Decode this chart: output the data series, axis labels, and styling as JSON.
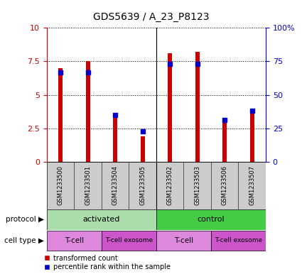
{
  "title": "GDS5639 / A_23_P8123",
  "samples": [
    "GSM1233500",
    "GSM1233501",
    "GSM1233504",
    "GSM1233505",
    "GSM1233502",
    "GSM1233503",
    "GSM1233506",
    "GSM1233507"
  ],
  "red_values": [
    7.0,
    7.5,
    3.3,
    1.9,
    8.1,
    8.2,
    3.0,
    3.9
  ],
  "blue_pct": [
    67,
    67,
    35,
    23,
    73,
    73,
    31,
    38
  ],
  "ylim": [
    0,
    10
  ],
  "yticks": [
    0,
    2.5,
    5.0,
    7.5,
    10
  ],
  "y2ticks": [
    0,
    25,
    50,
    75,
    100
  ],
  "protocol_color_activated": "#aaddaa",
  "protocol_color_control": "#44cc44",
  "cell_type_color_tcell": "#dd88dd",
  "cell_type_color_exosome": "#cc55cc",
  "bar_color": "#cc0000",
  "blue_color": "#0000cc",
  "title_fontsize": 10,
  "axis_label_color_red": "#cc0000",
  "axis_label_color_blue": "#0000cc",
  "sample_bg_color": "#cccccc",
  "bar_width": 0.15
}
